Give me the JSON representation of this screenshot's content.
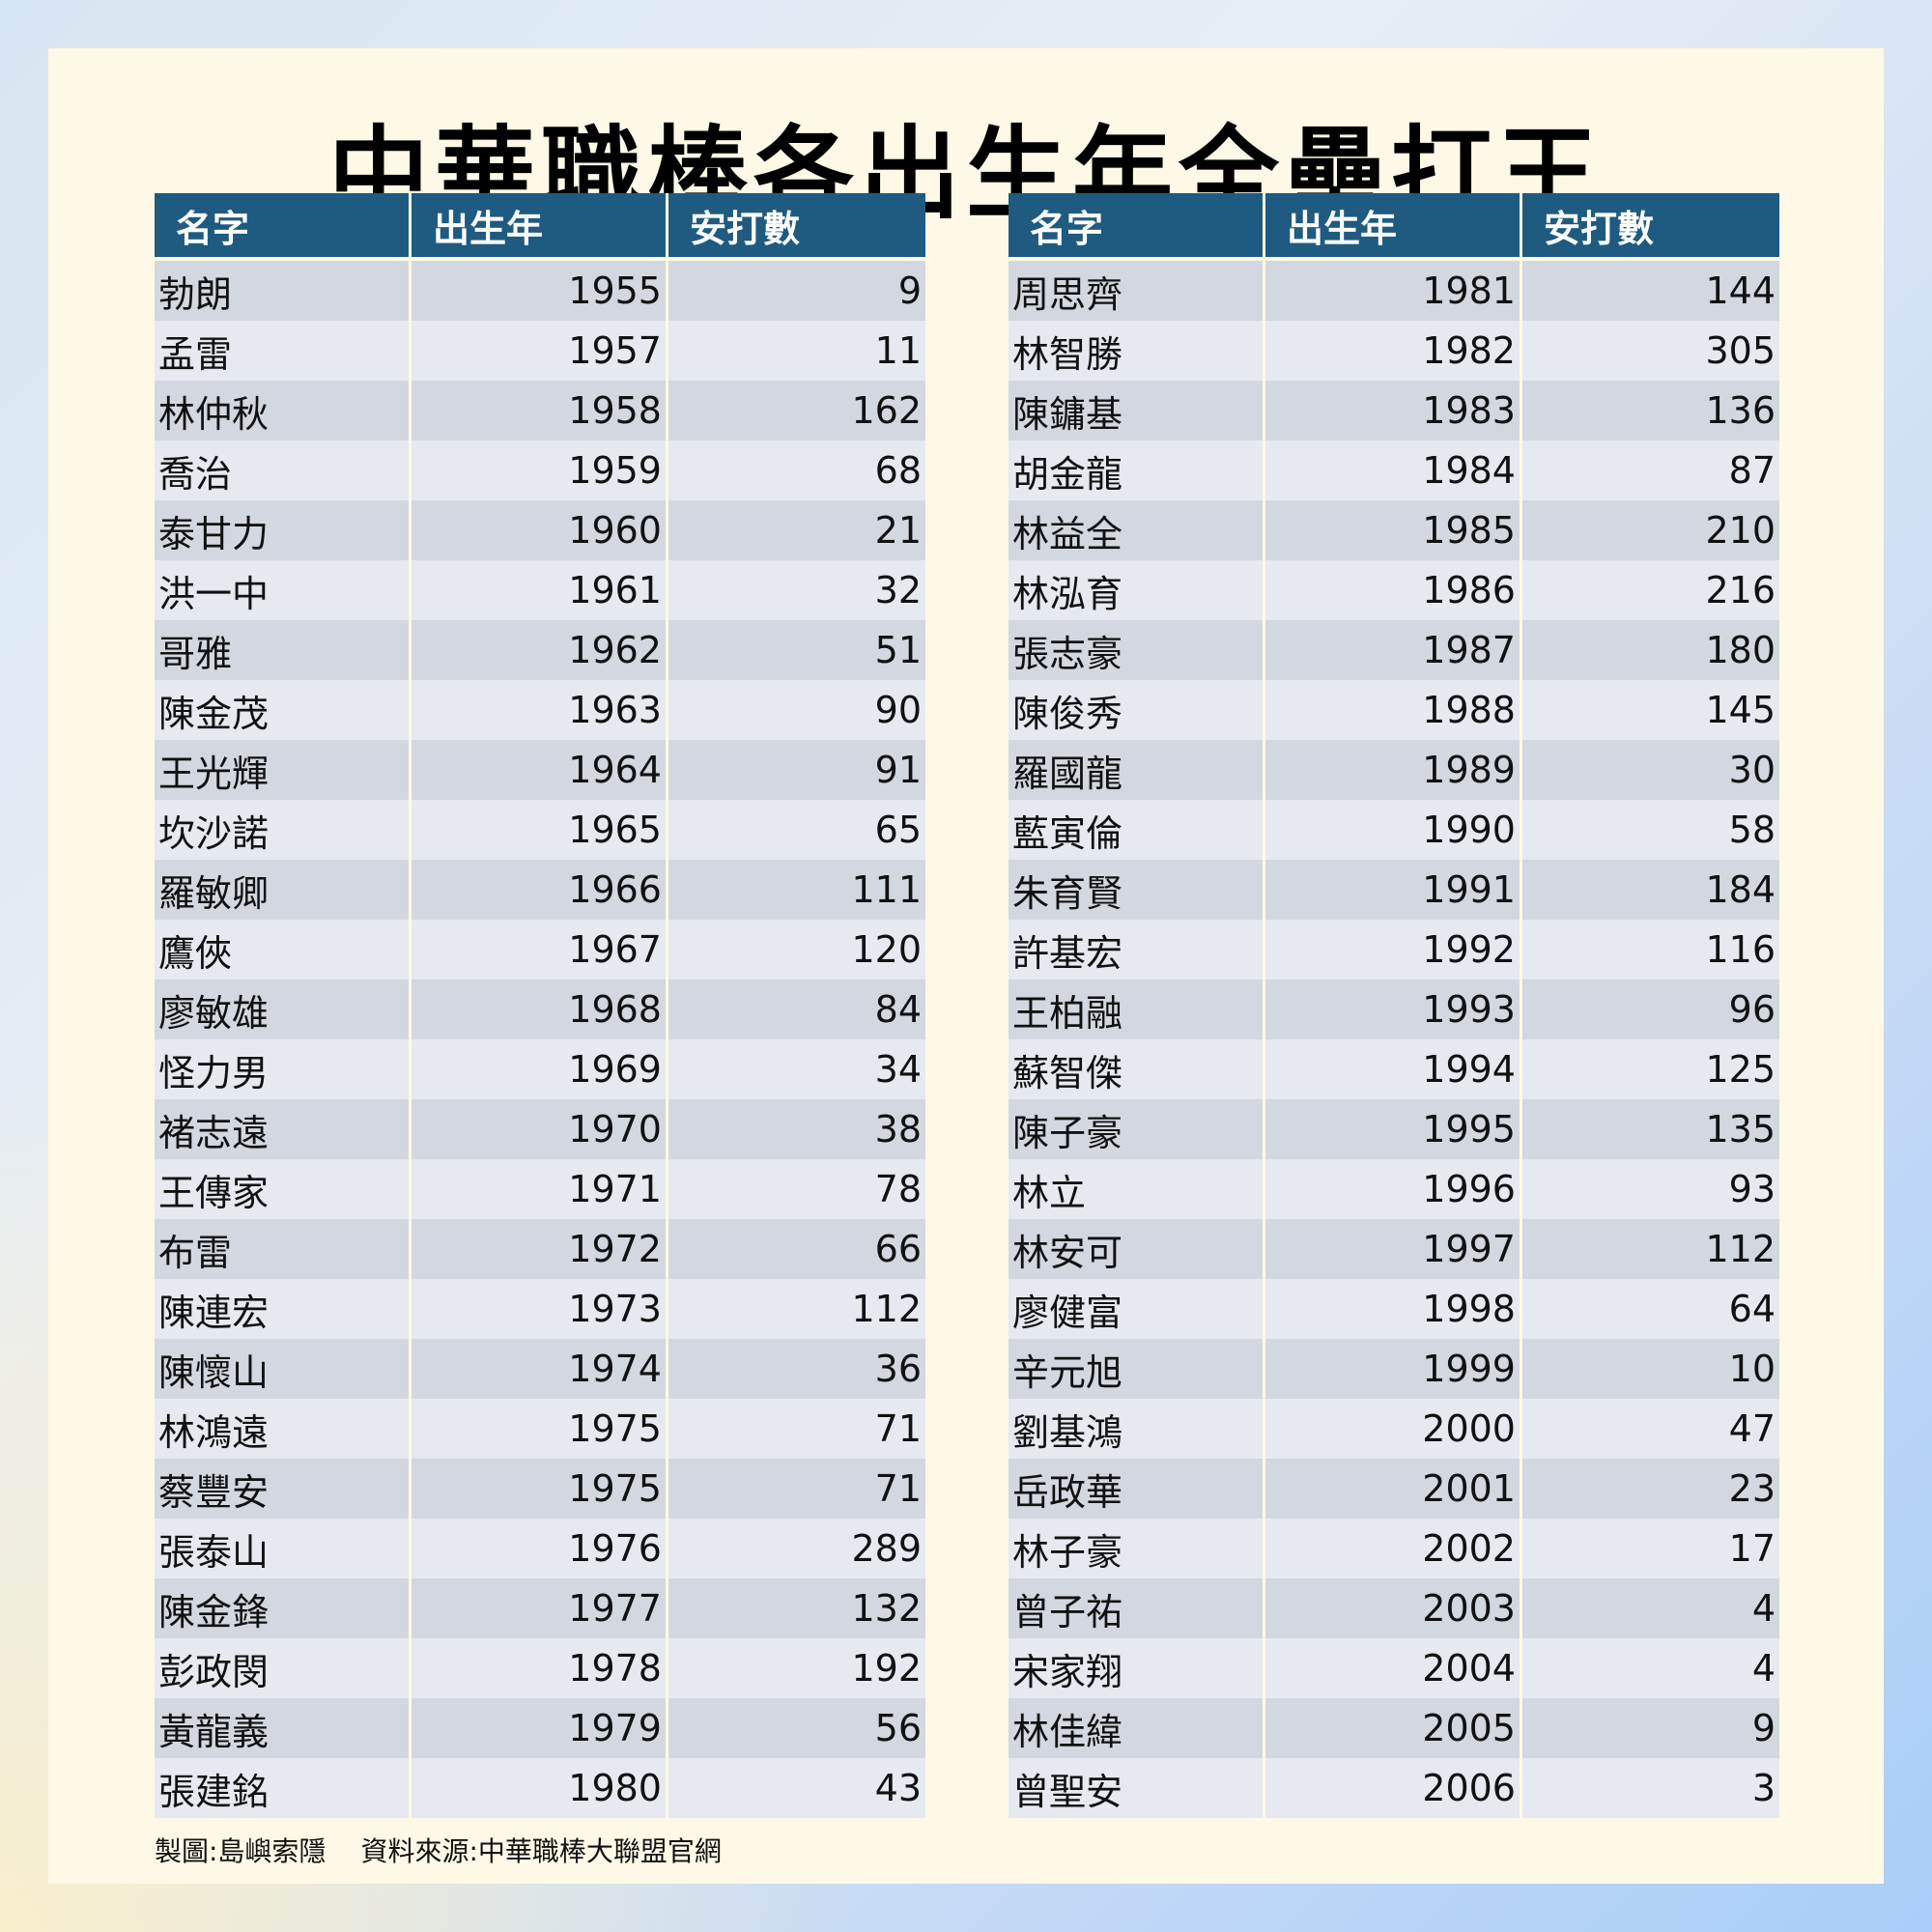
{
  "title": "中華職棒各出生年全壘打王",
  "headers": {
    "name": "名字",
    "year": "出生年",
    "hits": "安打數"
  },
  "left_rows": [
    {
      "name": "勃朗",
      "year": "1955",
      "hits": "9"
    },
    {
      "name": "孟雷",
      "year": "1957",
      "hits": "11"
    },
    {
      "name": "林仲秋",
      "year": "1958",
      "hits": "162"
    },
    {
      "name": "喬治",
      "year": "1959",
      "hits": "68"
    },
    {
      "name": "泰甘力",
      "year": "1960",
      "hits": "21"
    },
    {
      "name": "洪一中",
      "year": "1961",
      "hits": "32"
    },
    {
      "name": "哥雅",
      "year": "1962",
      "hits": "51"
    },
    {
      "name": "陳金茂",
      "year": "1963",
      "hits": "90"
    },
    {
      "name": "王光輝",
      "year": "1964",
      "hits": "91"
    },
    {
      "name": "坎沙諾",
      "year": "1965",
      "hits": "65"
    },
    {
      "name": "羅敏卿",
      "year": "1966",
      "hits": "111"
    },
    {
      "name": "鷹俠",
      "year": "1967",
      "hits": "120"
    },
    {
      "name": "廖敏雄",
      "year": "1968",
      "hits": "84"
    },
    {
      "name": "怪力男",
      "year": "1969",
      "hits": "34"
    },
    {
      "name": "褚志遠",
      "year": "1970",
      "hits": "38"
    },
    {
      "name": "王傳家",
      "year": "1971",
      "hits": "78"
    },
    {
      "name": "布雷",
      "year": "1972",
      "hits": "66"
    },
    {
      "name": "陳連宏",
      "year": "1973",
      "hits": "112"
    },
    {
      "name": "陳懷山",
      "year": "1974",
      "hits": "36"
    },
    {
      "name": "林鴻遠",
      "year": "1975",
      "hits": "71"
    },
    {
      "name": "蔡豐安",
      "year": "1975",
      "hits": "71"
    },
    {
      "name": "張泰山",
      "year": "1976",
      "hits": "289"
    },
    {
      "name": "陳金鋒",
      "year": "1977",
      "hits": "132"
    },
    {
      "name": "彭政閔",
      "year": "1978",
      "hits": "192"
    },
    {
      "name": "黃龍義",
      "year": "1979",
      "hits": "56"
    },
    {
      "name": "張建銘",
      "year": "1980",
      "hits": "43"
    }
  ],
  "right_rows": [
    {
      "name": "周思齊",
      "year": "1981",
      "hits": "144"
    },
    {
      "name": "林智勝",
      "year": "1982",
      "hits": "305"
    },
    {
      "name": "陳鏞基",
      "year": "1983",
      "hits": "136"
    },
    {
      "name": "胡金龍",
      "year": "1984",
      "hits": "87"
    },
    {
      "name": "林益全",
      "year": "1985",
      "hits": "210"
    },
    {
      "name": "林泓育",
      "year": "1986",
      "hits": "216"
    },
    {
      "name": "張志豪",
      "year": "1987",
      "hits": "180"
    },
    {
      "name": "陳俊秀",
      "year": "1988",
      "hits": "145"
    },
    {
      "name": "羅國龍",
      "year": "1989",
      "hits": "30"
    },
    {
      "name": "藍寅倫",
      "year": "1990",
      "hits": "58"
    },
    {
      "name": "朱育賢",
      "year": "1991",
      "hits": "184"
    },
    {
      "name": "許基宏",
      "year": "1992",
      "hits": "116"
    },
    {
      "name": "王柏融",
      "year": "1993",
      "hits": "96"
    },
    {
      "name": "蘇智傑",
      "year": "1994",
      "hits": "125"
    },
    {
      "name": "陳子豪",
      "year": "1995",
      "hits": "135"
    },
    {
      "name": "林立",
      "year": "1996",
      "hits": "93"
    },
    {
      "name": "林安可",
      "year": "1997",
      "hits": "112"
    },
    {
      "name": "廖健富",
      "year": "1998",
      "hits": "64"
    },
    {
      "name": "辛元旭",
      "year": "1999",
      "hits": "10"
    },
    {
      "name": "劉基鴻",
      "year": "2000",
      "hits": "47"
    },
    {
      "name": "岳政華",
      "year": "2001",
      "hits": "23"
    },
    {
      "name": "林子豪",
      "year": "2002",
      "hits": "17"
    },
    {
      "name": "曾子祐",
      "year": "2003",
      "hits": "4"
    },
    {
      "name": "宋家翔",
      "year": "2004",
      "hits": "4"
    },
    {
      "name": "林佳緯",
      "year": "2005",
      "hits": "9"
    },
    {
      "name": "曾聖安",
      "year": "2006",
      "hits": "3"
    }
  ],
  "footer": {
    "credit": "製圖:島嶼索隱",
    "source": "資料來源:中華職棒大聯盟官網"
  }
}
